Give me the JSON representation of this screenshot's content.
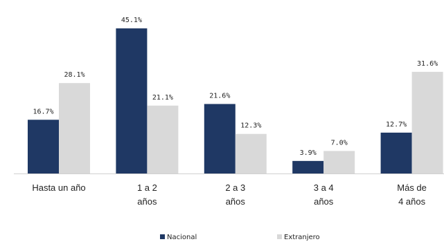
{
  "chart_data": {
    "type": "bar",
    "categories": [
      [
        "Hasta un año"
      ],
      [
        "1 a 2",
        "años"
      ],
      [
        "2 a 3",
        "años"
      ],
      [
        "3 a 4",
        "años"
      ],
      [
        "Más de",
        "4 años"
      ]
    ],
    "series": [
      {
        "name": "Nacional",
        "color": "#1f3864",
        "values": [
          16.7,
          45.1,
          21.6,
          3.9,
          12.7
        ],
        "labels": [
          "16.7%",
          "45.1%",
          "21.6%",
          "3.9%",
          "12.7%"
        ]
      },
      {
        "name": "Extranjero",
        "color": "#d9d9d9",
        "values": [
          28.1,
          21.1,
          12.3,
          7.0,
          31.6
        ],
        "labels": [
          "28.1%",
          "21.1%",
          "12.3%",
          "7.0%",
          "31.6%"
        ]
      }
    ],
    "ylim": [
      0,
      50
    ],
    "grid": false,
    "legend_position": "bottom-center"
  }
}
